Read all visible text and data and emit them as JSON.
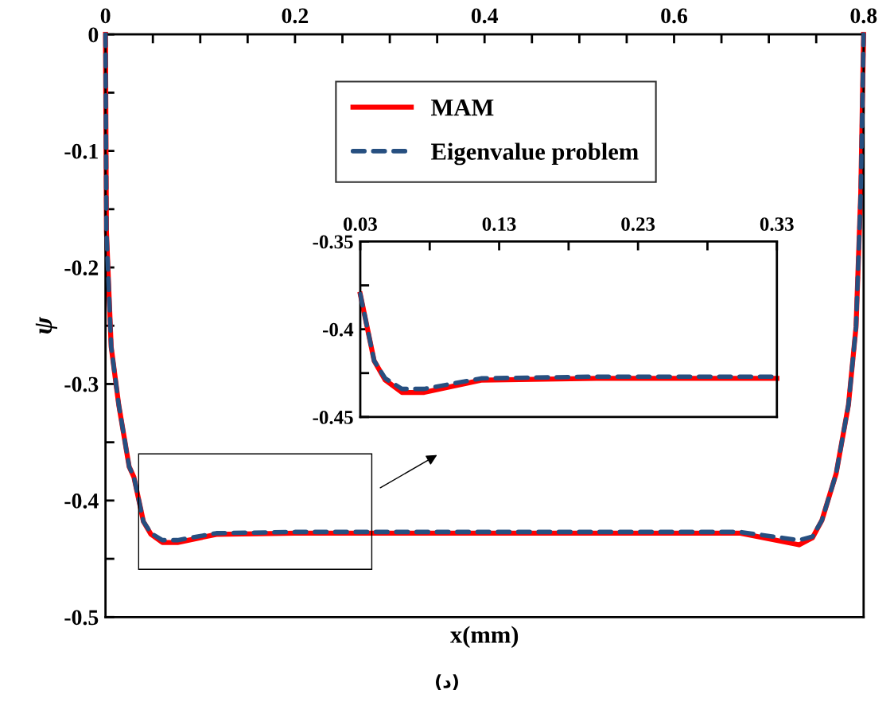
{
  "chart_data": [
    {
      "type": "line",
      "xlabel": "x(mm)",
      "ylabel": "ψ",
      "xlim": [
        0,
        0.8
      ],
      "ylim": [
        -0.5,
        0
      ],
      "xticks": [
        0,
        {
          "value": 0.05,
          "label": null
        },
        {
          "value": 0.1,
          "label": null
        },
        {
          "value": 0.15,
          "label": null
        },
        0.2,
        {
          "value": 0.25,
          "label": null
        },
        {
          "value": 0.3,
          "label": null
        },
        {
          "value": 0.35,
          "label": null
        },
        0.4,
        {
          "value": 0.45,
          "label": null
        },
        {
          "value": 0.5,
          "label": null
        },
        {
          "value": 0.55,
          "label": null
        },
        0.6,
        {
          "value": 0.65,
          "label": null
        },
        {
          "value": 0.7,
          "label": null
        },
        {
          "value": 0.75,
          "label": null
        },
        0.8
      ],
      "yticks": [
        0,
        {
          "value": -0.05,
          "label": null
        },
        -0.1,
        {
          "value": -0.15,
          "label": null
        },
        -0.2,
        {
          "value": -0.25,
          "label": null
        },
        -0.3,
        {
          "value": -0.35,
          "label": null
        },
        -0.4,
        {
          "value": -0.45,
          "label": null
        },
        -0.5
      ],
      "legend": "top",
      "series": [
        {
          "name": "MAM",
          "color": "#ff0000",
          "line_style": "solid",
          "x": [
            0,
            0.001,
            0.006,
            0.014,
            0.025,
            0.03,
            0.04,
            0.048,
            0.06,
            0.076,
            0.117,
            0.2,
            0.3,
            0.4,
            0.5,
            0.6,
            0.67,
            0.732,
            0.746,
            0.756,
            0.771,
            0.784,
            0.792,
            0.797,
            0.8
          ],
          "values": [
            0,
            -0.169,
            -0.268,
            -0.318,
            -0.371,
            -0.38,
            -0.418,
            -0.429,
            -0.436,
            -0.436,
            -0.429,
            -0.428,
            -0.428,
            -0.428,
            -0.428,
            -0.428,
            -0.428,
            -0.438,
            -0.432,
            -0.417,
            -0.377,
            -0.318,
            -0.251,
            -0.136,
            0
          ]
        },
        {
          "name": "Eigenvalue problem",
          "color": "#264f80",
          "line_style": "dashed",
          "x": [
            0,
            0.001,
            0.006,
            0.014,
            0.025,
            0.03,
            0.04,
            0.048,
            0.06,
            0.076,
            0.117,
            0.2,
            0.3,
            0.4,
            0.5,
            0.6,
            0.67,
            0.732,
            0.746,
            0.756,
            0.771,
            0.784,
            0.792,
            0.797,
            0.8
          ],
          "values": [
            0,
            -0.169,
            -0.268,
            -0.318,
            -0.371,
            -0.38,
            -0.418,
            -0.428,
            -0.434,
            -0.434,
            -0.428,
            -0.427,
            -0.427,
            -0.427,
            -0.427,
            -0.427,
            -0.427,
            -0.434,
            -0.431,
            -0.417,
            -0.377,
            -0.318,
            -0.251,
            -0.136,
            0
          ]
        }
      ],
      "annotations": [
        "(د)"
      ]
    },
    {
      "type": "line",
      "xlim": [
        0.03,
        0.33
      ],
      "ylim": [
        -0.45,
        -0.35
      ],
      "xticks": [
        0.03,
        {
          "value": 0.08,
          "label": null
        },
        0.13,
        {
          "value": 0.18,
          "label": null
        },
        0.23,
        {
          "value": 0.28,
          "label": null
        },
        0.33
      ],
      "yticks": [
        -0.35,
        {
          "value": -0.375,
          "label": null
        },
        -0.4,
        {
          "value": -0.425,
          "label": null
        },
        -0.45
      ],
      "series": [
        {
          "color": "#ff0000",
          "line_style": "solid",
          "x": [
            0.03,
            0.04,
            0.048,
            0.06,
            0.076,
            0.117,
            0.2,
            0.3,
            0.33
          ],
          "values": [
            -0.38,
            -0.418,
            -0.429,
            -0.436,
            -0.436,
            -0.429,
            -0.428,
            -0.428,
            -0.428
          ]
        },
        {
          "color": "#264f80",
          "line_style": "dashed",
          "x": [
            0.03,
            0.04,
            0.048,
            0.06,
            0.076,
            0.117,
            0.2,
            0.3,
            0.33
          ],
          "values": [
            -0.38,
            -0.418,
            -0.428,
            -0.434,
            -0.434,
            -0.428,
            -0.427,
            -0.427,
            -0.427
          ]
        }
      ]
    }
  ]
}
